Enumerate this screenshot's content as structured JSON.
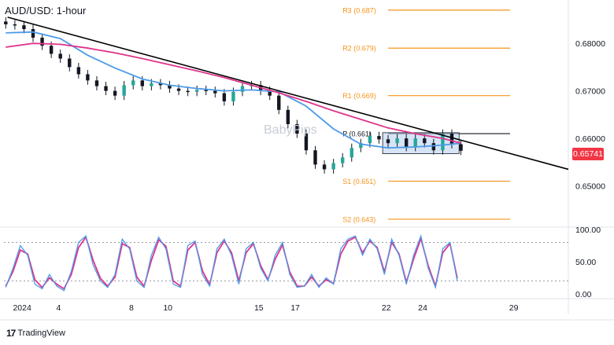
{
  "title": "AUD/USD: 1-hour",
  "watermark": "BabyPips",
  "branding": "TradingView",
  "colors": {
    "up": "#26a69a",
    "candle": "#131722",
    "ma_fast": "#4c9be8",
    "ma_slow": "#e0338a",
    "pivot": "#f7931a",
    "trendline": "#000000",
    "badge": "#f23645",
    "stoch_k": "#4c9be8",
    "stoch_d": "#e0338a"
  },
  "chart_data": {
    "type": "line",
    "price_axis": {
      "ticks": [
        "0.68000",
        "0.67000",
        "0.66000",
        "0.65000"
      ],
      "tick_values": [
        0.68,
        0.67,
        0.66,
        0.65
      ],
      "range": [
        0.6415,
        0.6878
      ],
      "current_price_label": "0.65741",
      "current_price": 0.65741
    },
    "x_axis": {
      "ticks": [
        "2024",
        "4",
        "8",
        "10",
        "15",
        "17",
        "22",
        "24",
        "29"
      ],
      "tick_days": [
        2,
        4,
        8,
        10,
        15,
        17,
        22,
        24,
        29
      ],
      "day_range": [
        1,
        32
      ]
    },
    "pivots": [
      {
        "label": "R3 (0.687)",
        "value": 0.687
      },
      {
        "label": "R2 (0.679)",
        "value": 0.679
      },
      {
        "label": "R1 (0.669)",
        "value": 0.669
      },
      {
        "label": "P (0.661)",
        "value": 0.661
      },
      {
        "label": "S1 (0.651)",
        "value": 0.651
      },
      {
        "label": "S2 (0.643)",
        "value": 0.643
      }
    ],
    "trendline": {
      "start": [
        1.2,
        0.6855
      ],
      "end": [
        32,
        0.6535
      ]
    },
    "range_box": {
      "day_start": 21.8,
      "day_end": 26.0,
      "high": 0.6612,
      "low": 0.6568
    },
    "price_series": {
      "days": [
        1.1,
        1.6,
        2.1,
        2.6,
        3.1,
        3.6,
        4.1,
        4.6,
        5.1,
        5.6,
        6.1,
        6.6,
        7.1,
        7.6,
        8.1,
        8.6,
        9.1,
        9.6,
        10.1,
        10.6,
        11.1,
        11.6,
        12.1,
        12.6,
        13.1,
        13.6,
        14.1,
        14.6,
        15.1,
        15.6,
        16.1,
        16.6,
        17.1,
        17.6,
        18.1,
        18.6,
        19.1,
        19.6,
        20.1,
        20.6,
        21.1,
        21.6,
        22.1,
        22.6,
        23.1,
        23.6,
        24.1,
        24.6,
        25.1,
        25.6,
        26.1
      ],
      "values": [
        0.684,
        0.6838,
        0.683,
        0.6812,
        0.6795,
        0.6778,
        0.6768,
        0.675,
        0.6735,
        0.6722,
        0.671,
        0.67,
        0.669,
        0.6712,
        0.6722,
        0.671,
        0.6716,
        0.6712,
        0.6705,
        0.67,
        0.6698,
        0.6702,
        0.67,
        0.6695,
        0.6678,
        0.6698,
        0.671,
        0.6712,
        0.67,
        0.669,
        0.666,
        0.663,
        0.661,
        0.6575,
        0.6545,
        0.6535,
        0.6548,
        0.656,
        0.658,
        0.659,
        0.6605,
        0.6598,
        0.659,
        0.66,
        0.6582,
        0.66,
        0.659,
        0.6575,
        0.661,
        0.6588,
        0.6574
      ]
    },
    "series": [
      {
        "days": [
          1.1,
          2.6,
          4.1,
          5.6,
          7.1,
          8.6,
          10.1,
          11.6,
          13.1,
          14.6,
          16.1,
          17.6,
          19.1,
          20.6,
          22.1,
          23.6,
          25.1,
          26.1
        ],
        "values": [
          0.6822,
          0.6824,
          0.681,
          0.6775,
          0.6748,
          0.6725,
          0.6712,
          0.6705,
          0.67,
          0.6702,
          0.6698,
          0.6668,
          0.662,
          0.6588,
          0.658,
          0.6582,
          0.6586,
          0.659
        ]
      },
      {
        "days": [
          1.1,
          2.6,
          4.1,
          5.6,
          7.1,
          8.6,
          10.1,
          11.6,
          13.1,
          14.6,
          16.1,
          17.6,
          19.1,
          20.6,
          22.1,
          23.6,
          25.1,
          26.1
        ],
        "values": [
          0.6792,
          0.68,
          0.6798,
          0.679,
          0.678,
          0.6768,
          0.6755,
          0.6742,
          0.6728,
          0.6712,
          0.6696,
          0.6678,
          0.6658,
          0.664,
          0.6622,
          0.661,
          0.66,
          0.659
        ]
      }
    ],
    "oscillator": {
      "ticks": [
        "100.00",
        "50.00",
        "0.00"
      ],
      "tick_values": [
        100,
        50,
        0
      ],
      "levels": [
        80,
        20
      ],
      "range": [
        -5,
        100
      ],
      "days": [
        1.1,
        1.5,
        1.9,
        2.3,
        2.7,
        3.1,
        3.5,
        3.9,
        4.3,
        4.7,
        5.1,
        5.5,
        5.9,
        6.3,
        6.7,
        7.1,
        7.5,
        7.9,
        8.3,
        8.7,
        9.1,
        9.5,
        9.9,
        10.3,
        10.7,
        11.1,
        11.5,
        11.9,
        12.3,
        12.7,
        13.1,
        13.5,
        13.9,
        14.3,
        14.7,
        15.1,
        15.5,
        15.9,
        16.3,
        16.7,
        17.1,
        17.5,
        17.9,
        18.3,
        18.7,
        19.1,
        19.5,
        19.9,
        20.3,
        20.7,
        21.1,
        21.5,
        21.9,
        22.3,
        22.7,
        23.1,
        23.5,
        23.9,
        24.3,
        24.7,
        25.1,
        25.5,
        25.9
      ],
      "k": [
        10,
        40,
        75,
        60,
        15,
        8,
        30,
        12,
        5,
        35,
        80,
        90,
        45,
        20,
        10,
        30,
        85,
        70,
        20,
        10,
        60,
        88,
        70,
        15,
        10,
        75,
        82,
        30,
        12,
        70,
        85,
        60,
        15,
        70,
        80,
        40,
        20,
        60,
        80,
        30,
        10,
        12,
        30,
        10,
        25,
        15,
        70,
        85,
        90,
        60,
        85,
        70,
        30,
        85,
        60,
        15,
        60,
        90,
        40,
        10,
        70,
        80,
        20
      ],
      "d": [
        12,
        35,
        68,
        62,
        22,
        10,
        25,
        15,
        8,
        30,
        72,
        88,
        52,
        24,
        12,
        26,
        78,
        72,
        26,
        12,
        52,
        84,
        74,
        20,
        12,
        68,
        80,
        36,
        14,
        64,
        82,
        64,
        20,
        64,
        78,
        44,
        22,
        54,
        76,
        34,
        12,
        12,
        26,
        12,
        22,
        16,
        62,
        82,
        88,
        64,
        82,
        72,
        34,
        80,
        62,
        18,
        54,
        86,
        44,
        12,
        64,
        78,
        24
      ]
    }
  }
}
